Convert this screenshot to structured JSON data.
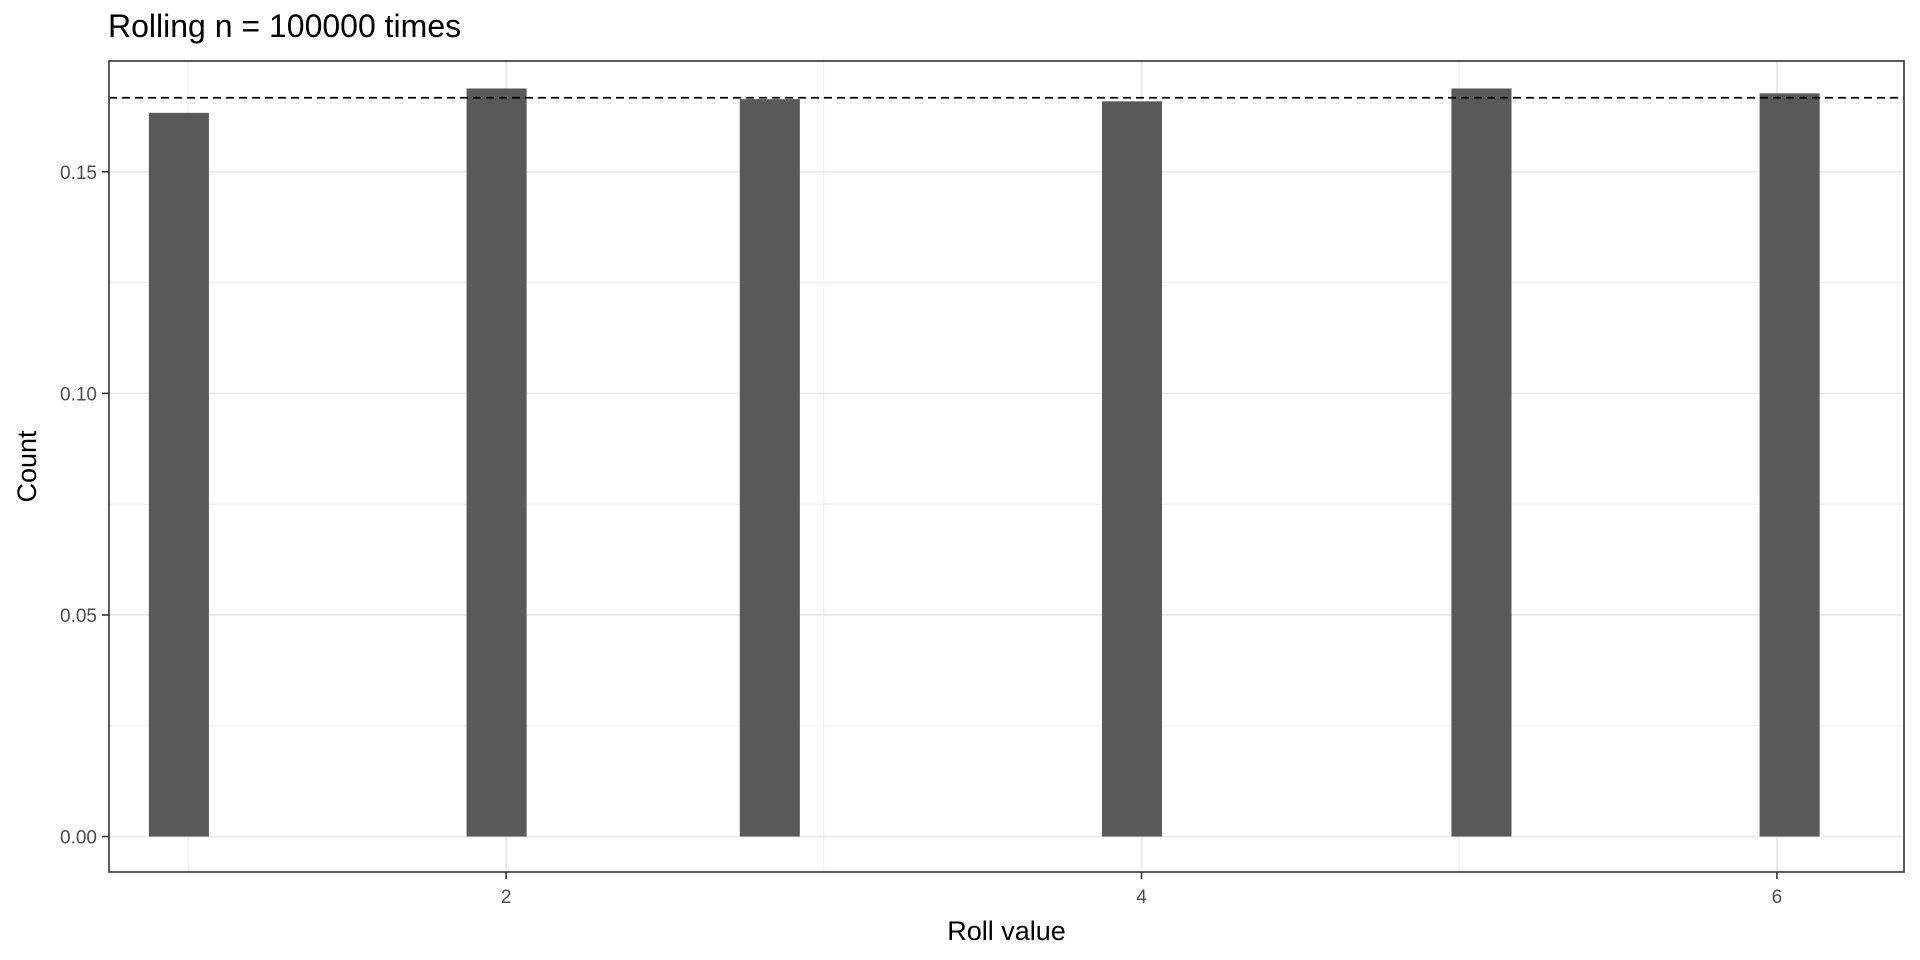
{
  "chart_data": {
    "type": "bar",
    "title": "Rolling n = 100000 times",
    "xlabel": "Roll value",
    "ylabel": "Count",
    "x": [
      0.97,
      1.97,
      2.83,
      3.97,
      5.07,
      6.04
    ],
    "values": [
      0.1633,
      0.1688,
      0.1664,
      0.1659,
      0.1688,
      0.1677
    ],
    "bar_color": "#595959",
    "reference_line": {
      "y": 0.1667,
      "style": "dashed",
      "color": "#000000"
    },
    "xlim": [
      0.75,
      6.4
    ],
    "ylim": [
      -0.008,
      0.175
    ],
    "x_ticks": [
      {
        "value": 2,
        "label": "2"
      },
      {
        "value": 4,
        "label": "4"
      },
      {
        "value": 6,
        "label": "6"
      }
    ],
    "x_minor_ticks": [
      1,
      3,
      5
    ],
    "y_ticks": [
      {
        "value": 0.0,
        "label": "0.00"
      },
      {
        "value": 0.05,
        "label": "0.05"
      },
      {
        "value": 0.1,
        "label": "0.10"
      },
      {
        "value": 0.15,
        "label": "0.15"
      }
    ],
    "y_minor_ticks": [
      0.025,
      0.075,
      0.125
    ],
    "grid": true,
    "legend": "none"
  }
}
